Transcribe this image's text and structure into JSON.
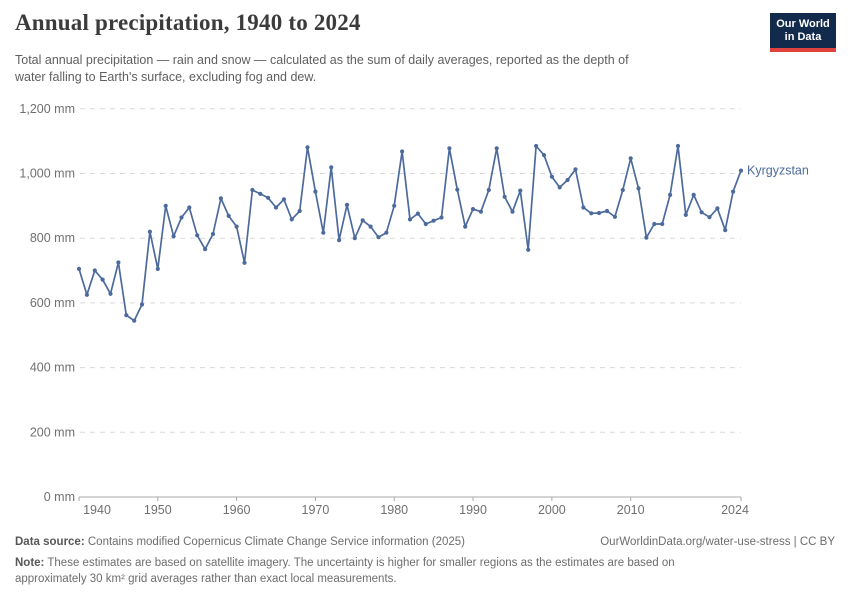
{
  "header": {
    "title": "Annual precipitation, 1940 to 2024",
    "subtitle": [
      "Total annual precipitation — rain and snow — calculated as the sum of daily averages, reported as the depth of",
      "water falling to Earth's surface, excluding fog and dew."
    ],
    "logo": {
      "line1": "Our World",
      "line2": "in Data"
    }
  },
  "colors": {
    "line": "#4c6a9c",
    "grid": "#d9d9d9",
    "axis": "#a9a9a9",
    "tick_text": "#707070",
    "series_label": "#4c6a9c",
    "logo_bg": "#122b4c",
    "logo_stripe": "#e0423d"
  },
  "chart_data": {
    "type": "line",
    "title": "Annual precipitation, 1940 to 2024",
    "series_label": "Kyrgyzstan",
    "unit": "mm",
    "xlabel": "",
    "ylabel": "",
    "ylim": [
      0,
      1200
    ],
    "grid": "dashed-horizontal",
    "legend_position": "right-of-last-point",
    "years": [
      1940,
      1941,
      1942,
      1943,
      1944,
      1945,
      1946,
      1947,
      1948,
      1949,
      1950,
      1951,
      1952,
      1953,
      1954,
      1955,
      1956,
      1957,
      1958,
      1959,
      1960,
      1961,
      1962,
      1963,
      1964,
      1965,
      1966,
      1967,
      1968,
      1969,
      1970,
      1971,
      1972,
      1973,
      1974,
      1975,
      1976,
      1977,
      1978,
      1979,
      1980,
      1981,
      1982,
      1983,
      1984,
      1985,
      1986,
      1987,
      1988,
      1989,
      1990,
      1991,
      1992,
      1993,
      1994,
      1995,
      1996,
      1997,
      1998,
      1999,
      2000,
      2001,
      2002,
      2003,
      2004,
      2005,
      2006,
      2007,
      2008,
      2009,
      2010,
      2011,
      2012,
      2013,
      2014,
      2015,
      2016,
      2017,
      2018,
      2019,
      2020,
      2021,
      2022,
      2023,
      2024
    ],
    "values": [
      705,
      625,
      700,
      672,
      628,
      725,
      562,
      545,
      595,
      820,
      705,
      900,
      806,
      864,
      895,
      809,
      766,
      813,
      923,
      869,
      836,
      724,
      949,
      937,
      925,
      895,
      920,
      858,
      884,
      1081,
      944,
      817,
      1019,
      794,
      903,
      800,
      855,
      836,
      803,
      817,
      900,
      1068,
      858,
      876,
      844,
      854,
      864,
      1078,
      950,
      836,
      890,
      882,
      949,
      1078,
      928,
      882,
      947,
      764,
      1085,
      1057,
      990,
      957,
      980,
      1013,
      895,
      877,
      878,
      884,
      866,
      949,
      1047,
      954,
      802,
      844,
      844,
      934,
      1085,
      872,
      934,
      880,
      865,
      892,
      825,
      944,
      1009
    ],
    "y_ticks": [
      {
        "value": 0,
        "label": "0 mm"
      },
      {
        "value": 200,
        "label": "200 mm"
      },
      {
        "value": 400,
        "label": "400 mm"
      },
      {
        "value": 600,
        "label": "600 mm"
      },
      {
        "value": 800,
        "label": "800 mm"
      },
      {
        "value": 1000,
        "label": "1,000 mm"
      },
      {
        "value": 1200,
        "label": "1,200 mm"
      }
    ],
    "x_ticks": [
      "1940",
      "1950",
      "1960",
      "1970",
      "1980",
      "1990",
      "2000",
      "2010",
      "2024"
    ]
  },
  "footer": {
    "datasource_label": "Data source:",
    "datasource_text": "Contains modified Copernicus Climate Change Service information (2025)",
    "link_text": "OurWorldinData.org/water-use-stress | CC BY",
    "note_label": "Note:",
    "note_text": "These estimates are based on satellite imagery. The uncertainty is higher for smaller regions as the estimates are based on approximately 30 km² grid averages rather than exact local measurements."
  }
}
